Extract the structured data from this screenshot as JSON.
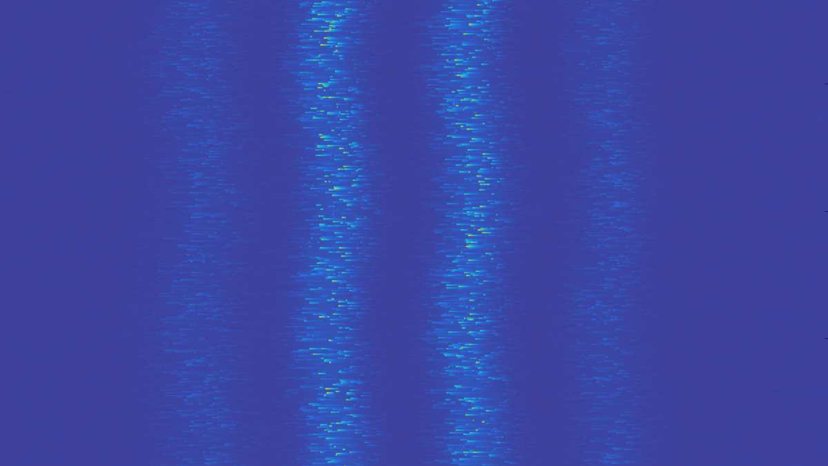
{
  "chart_data": {
    "type": "heatmap",
    "colormap": "parula",
    "colors": {
      "low": "#3e3f9b",
      "mid": "#1fb6d8",
      "high": "#f2d526"
    },
    "grid": false,
    "legend": "none",
    "y_ticks_right": 3
  }
}
